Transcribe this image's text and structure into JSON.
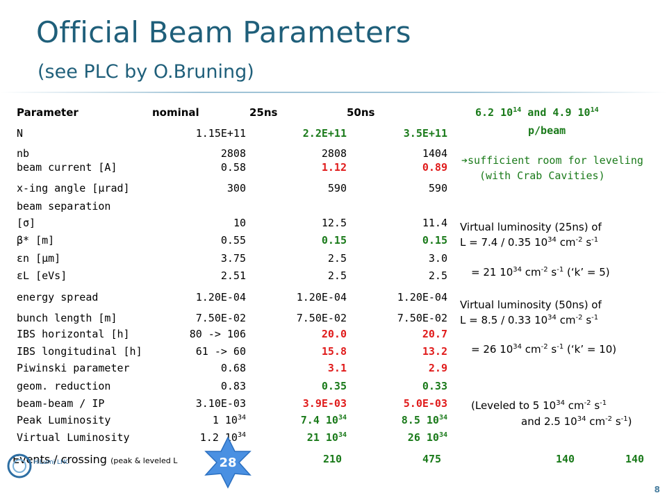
{
  "slide": {
    "title": "Official Beam Parameters",
    "subtitle": "(see PLC by O.Bruning)",
    "page_number": "8",
    "badge_number": "28",
    "logo_text": "HiLumi LHC"
  },
  "table": {
    "headers": [
      "Parameter",
      "nominal",
      "25ns",
      "50ns"
    ],
    "rows": [
      {
        "label": "N",
        "nominal": "1.15E+11",
        "ns25": "2.2E+11",
        "ns50": "3.5E+11",
        "style": "green"
      },
      {
        "label": "nb",
        "nominal": "2808",
        "ns25": "2808",
        "ns50": "1404",
        "style": "plain"
      },
      {
        "label": "beam current [A]",
        "nominal": "0.58",
        "ns25": "1.12",
        "ns50": "0.89",
        "style": "red"
      },
      {
        "label": "x-ing angle [μrad]",
        "nominal": "300",
        "ns25": "590",
        "ns50": "590",
        "style": "plain"
      },
      {
        "label": "beam separation",
        "nominal": "",
        "ns25": "",
        "ns50": "",
        "style": "plain"
      },
      {
        "label": "[σ]",
        "nominal": "10",
        "ns25": "12.5",
        "ns50": "11.4",
        "style": "plain"
      },
      {
        "label": "β* [m]",
        "nominal": "0.55",
        "ns25": "0.15",
        "ns50": "0.15",
        "style": "green"
      },
      {
        "label": "εn [μm]",
        "nominal": "3.75",
        "ns25": "2.5",
        "ns50": "3.0",
        "style": "plain"
      },
      {
        "label": "εL [eVs]",
        "nominal": "2.51",
        "ns25": "2.5",
        "ns50": "2.5",
        "style": "plain"
      },
      {
        "label": "energy spread",
        "nominal": "1.20E-04",
        "ns25": "1.20E-04",
        "ns50": "1.20E-04",
        "style": "plain"
      },
      {
        "label": "bunch length [m]",
        "nominal": "7.50E-02",
        "ns25": "7.50E-02",
        "ns50": "7.50E-02",
        "style": "plain"
      },
      {
        "label": "IBS horizontal [h]",
        "nominal": "80 -> 106",
        "ns25": "20.0",
        "ns50": "20.7",
        "style": "red"
      },
      {
        "label": "IBS longitudinal [h]",
        "nominal": "61 -> 60",
        "ns25": "15.8",
        "ns50": "13.2",
        "style": "red"
      },
      {
        "label": "Piwinski parameter",
        "nominal": "0.68",
        "ns25": "3.1",
        "ns50": "2.9",
        "style": "red"
      },
      {
        "label": "geom. reduction",
        "nominal": "0.83",
        "ns25": "0.35",
        "ns50": "0.33",
        "style": "green"
      },
      {
        "label": "beam-beam / IP",
        "nominal": "3.10E-03",
        "ns25": "3.9E-03",
        "ns50": "5.0E-03",
        "style": "red"
      },
      {
        "label": "Peak Luminosity",
        "nominal": "1 10",
        "nominal_sup": "34",
        "ns25": "7.4 10",
        "ns25_sup": "34",
        "ns50": "8.5 10",
        "ns50_sup": "34",
        "style": "green"
      },
      {
        "label": "Virtual Luminosity",
        "nominal": "1.2 10",
        "nominal_sup": "34",
        "ns25": "21 10",
        "ns25_sup": "34",
        "ns50": "26 10",
        "ns50_sup": "34",
        "style": "green"
      }
    ],
    "events_label": "Events / crossing",
    "events_note": "(peak & leveled L",
    "events_values": [
      "210",
      "475",
      "140",
      "140"
    ]
  },
  "side": {
    "beam_line1": "6.2  10",
    "beam_sup1": "14",
    "beam_mid": " and 4.9  10",
    "beam_sup2": "14",
    "beam_line2": "p/beam",
    "leveling_arrow": "➔",
    "leveling_line1": "sufficient room for leveling",
    "leveling_line2": "(with Crab Cavities)",
    "vl25_line1": "Virtual luminosity (25ns) of",
    "vl25_line2": "L = 7.4 / 0.35 10",
    "vl25_line3": "= 21 10",
    "vl25_k": "(‘k’ = 5)",
    "vl50_line1": "Virtual luminosity (50ns) of",
    "vl50_line2": "L = 8.5 / 0.33 10",
    "vl50_line3": "= 26 10",
    "vl50_k": "(‘k’ = 10)",
    "exp34": "34",
    "cm": "cm",
    "cm_exp": "-2",
    "s": "s",
    "s_exp": "-1",
    "leveled_line1": "(Leveled to 5 10",
    "leveled_line2": "and 2.5 10"
  }
}
